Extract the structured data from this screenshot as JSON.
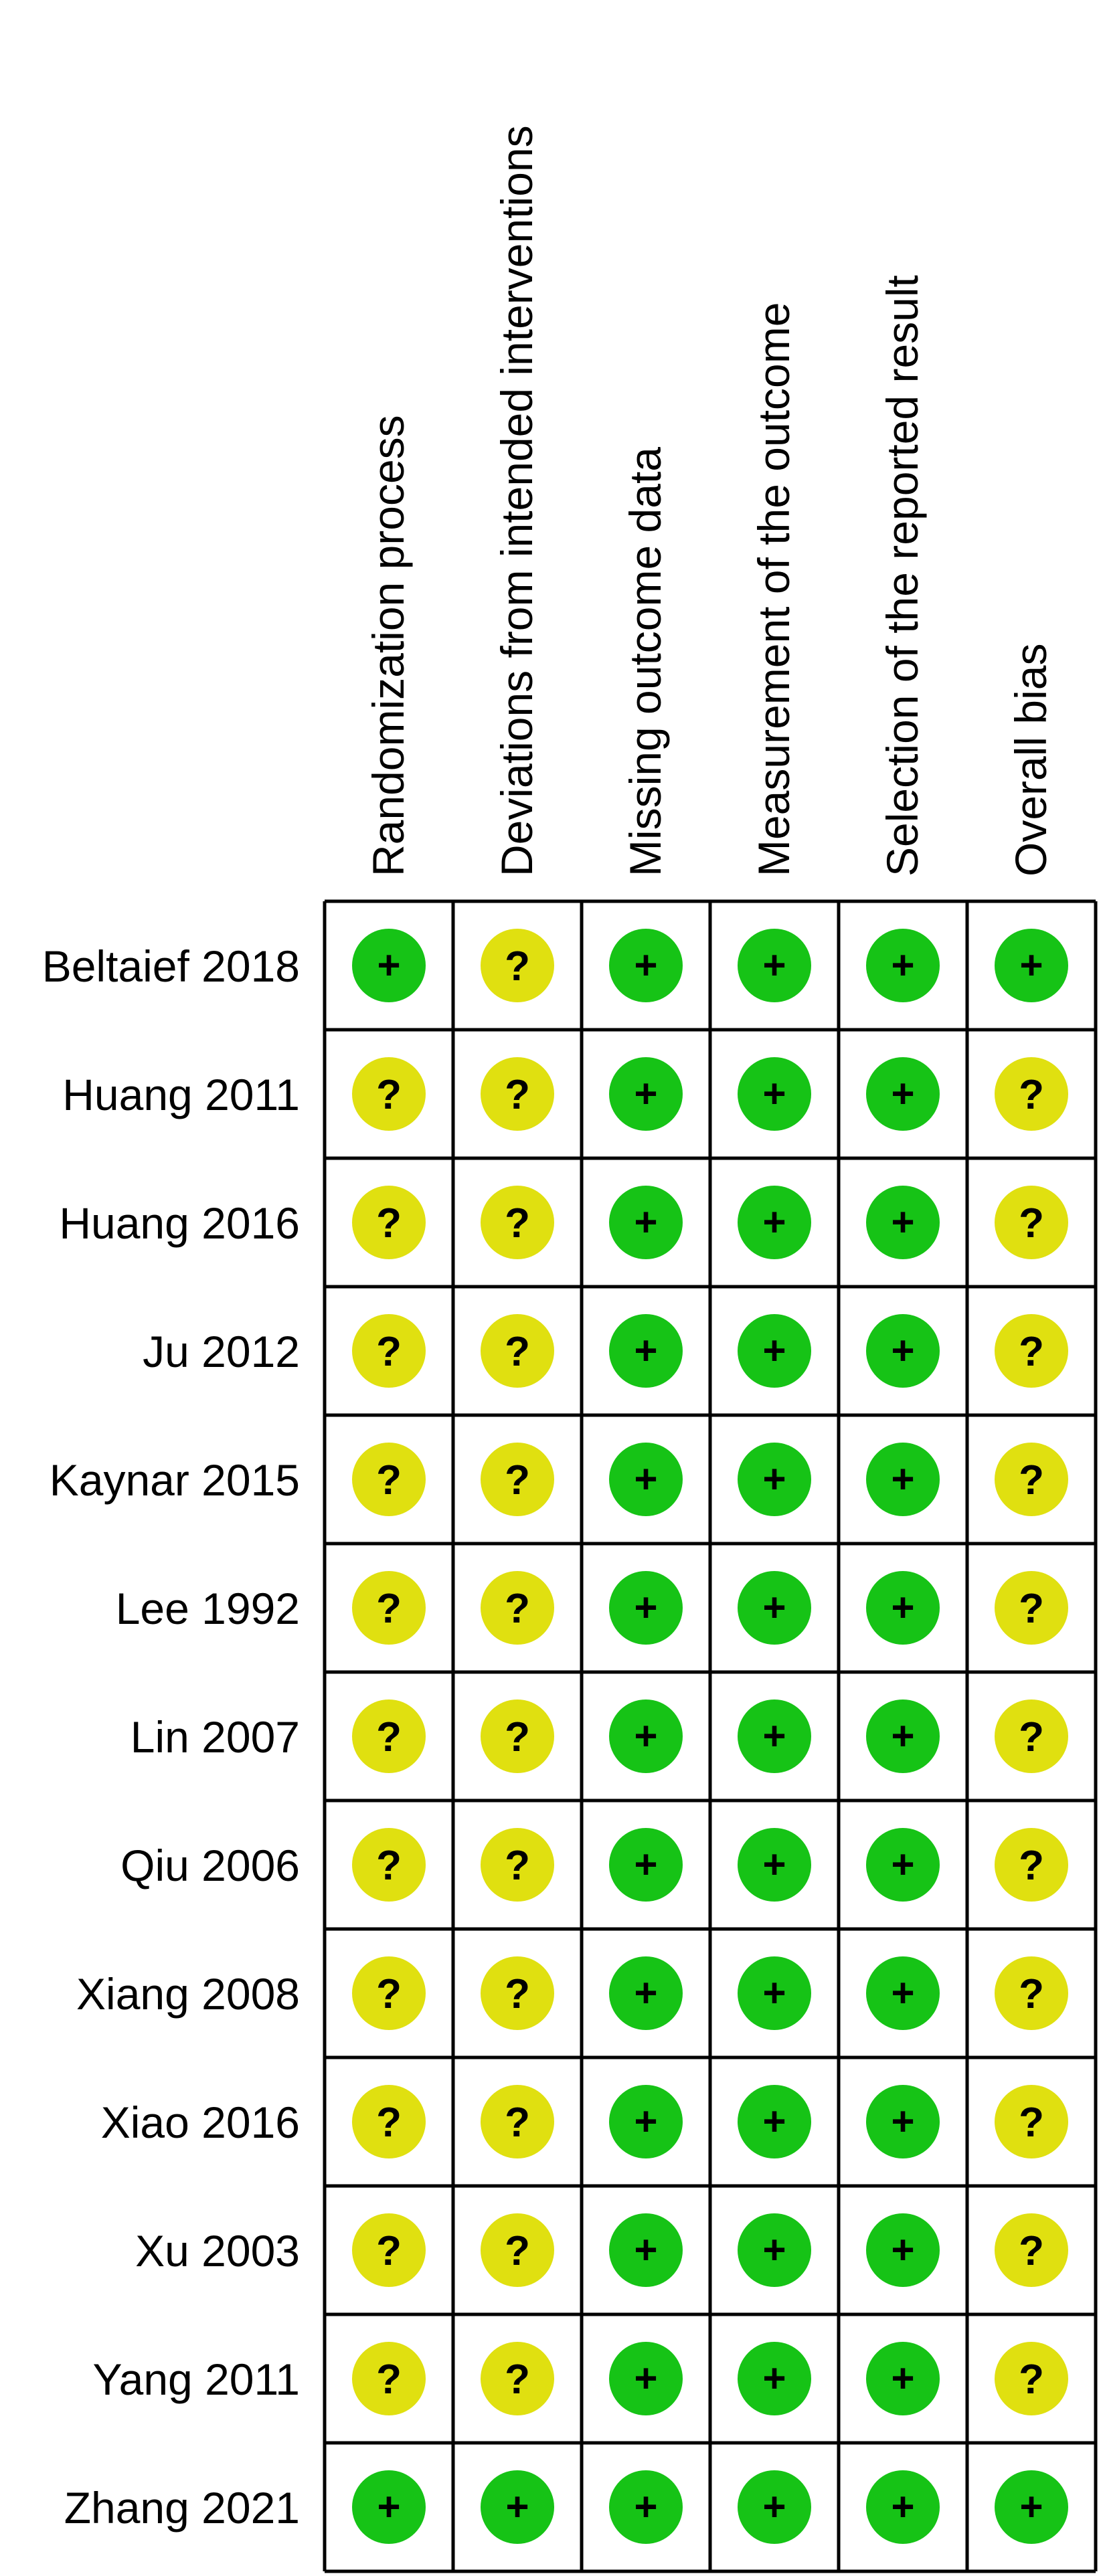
{
  "chart_data": {
    "type": "table",
    "domains": [
      "Randomization process",
      "Deviations from intended interventions",
      "Missing outcome data",
      "Measurement of the outcome",
      "Selection of the reported result",
      "Overall bias"
    ],
    "studies": [
      "Beltaief 2018",
      "Huang 2011",
      "Huang 2016",
      "Ju 2012",
      "Kaynar 2015",
      "Lee 1992",
      "Lin 2007",
      "Qiu 2006",
      "Xiang 2008",
      "Xiao 2016",
      "Xu 2003",
      "Yang 2011",
      "Zhang 2021"
    ],
    "judgements": [
      [
        "+",
        "?",
        "+",
        "+",
        "+",
        "+"
      ],
      [
        "?",
        "?",
        "+",
        "+",
        "+",
        "?"
      ],
      [
        "?",
        "?",
        "+",
        "+",
        "+",
        "?"
      ],
      [
        "?",
        "?",
        "+",
        "+",
        "+",
        "?"
      ],
      [
        "?",
        "?",
        "+",
        "+",
        "+",
        "?"
      ],
      [
        "?",
        "?",
        "+",
        "+",
        "+",
        "?"
      ],
      [
        "?",
        "?",
        "+",
        "+",
        "+",
        "?"
      ],
      [
        "?",
        "?",
        "+",
        "+",
        "+",
        "?"
      ],
      [
        "?",
        "?",
        "+",
        "+",
        "+",
        "?"
      ],
      [
        "?",
        "?",
        "+",
        "+",
        "+",
        "?"
      ],
      [
        "?",
        "?",
        "+",
        "+",
        "+",
        "?"
      ],
      [
        "?",
        "?",
        "+",
        "+",
        "+",
        "?"
      ],
      [
        "+",
        "+",
        "+",
        "+",
        "+",
        "+"
      ]
    ]
  },
  "colors": {
    "low_risk": "#16c316",
    "some_concerns": "#e0e010",
    "grid": "#000000"
  },
  "icons": {
    "low_risk": "plus-circle-icon",
    "some_concerns": "question-circle-icon"
  }
}
